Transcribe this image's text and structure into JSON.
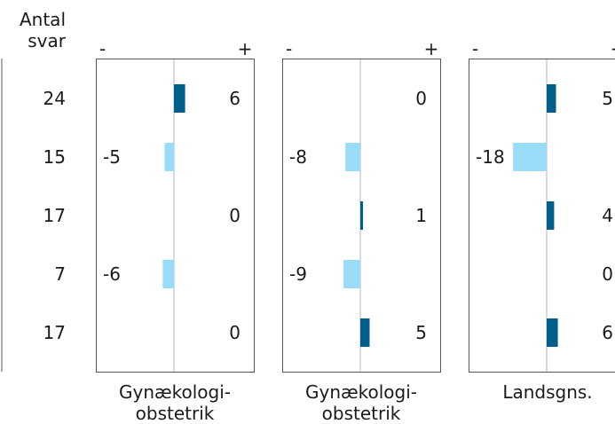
{
  "chart_data": {
    "type": "bar",
    "orientation": "horizontal-diverging",
    "count_header": "Antal\nsvar",
    "counts": [
      "24",
      "15",
      "17",
      "7",
      "17"
    ],
    "panels": [
      {
        "label": "Gynækologi-\nobstetrik",
        "sign_minus": "-",
        "sign_plus": "+",
        "values": [
          6,
          -5,
          0,
          -6,
          0
        ],
        "value_labels": [
          "6",
          "-5",
          "0",
          "-6",
          "0"
        ]
      },
      {
        "label": "Gynækologi-\nobstetrik",
        "sign_minus": "-",
        "sign_plus": "+",
        "values": [
          0,
          -8,
          1,
          -9,
          5
        ],
        "value_labels": [
          "0",
          "-8",
          "1",
          "-9",
          "5"
        ]
      },
      {
        "label": "Landsgns.",
        "sign_minus": "-",
        "sign_plus": "+",
        "values": [
          5,
          -18,
          4,
          0,
          6
        ],
        "value_labels": [
          "5",
          "-18",
          "4",
          "0",
          "6"
        ]
      }
    ],
    "colors": {
      "positive": "#005f8a",
      "negative": "#99dcf7",
      "axis": "#ccccdd",
      "frame": "#555555"
    }
  }
}
